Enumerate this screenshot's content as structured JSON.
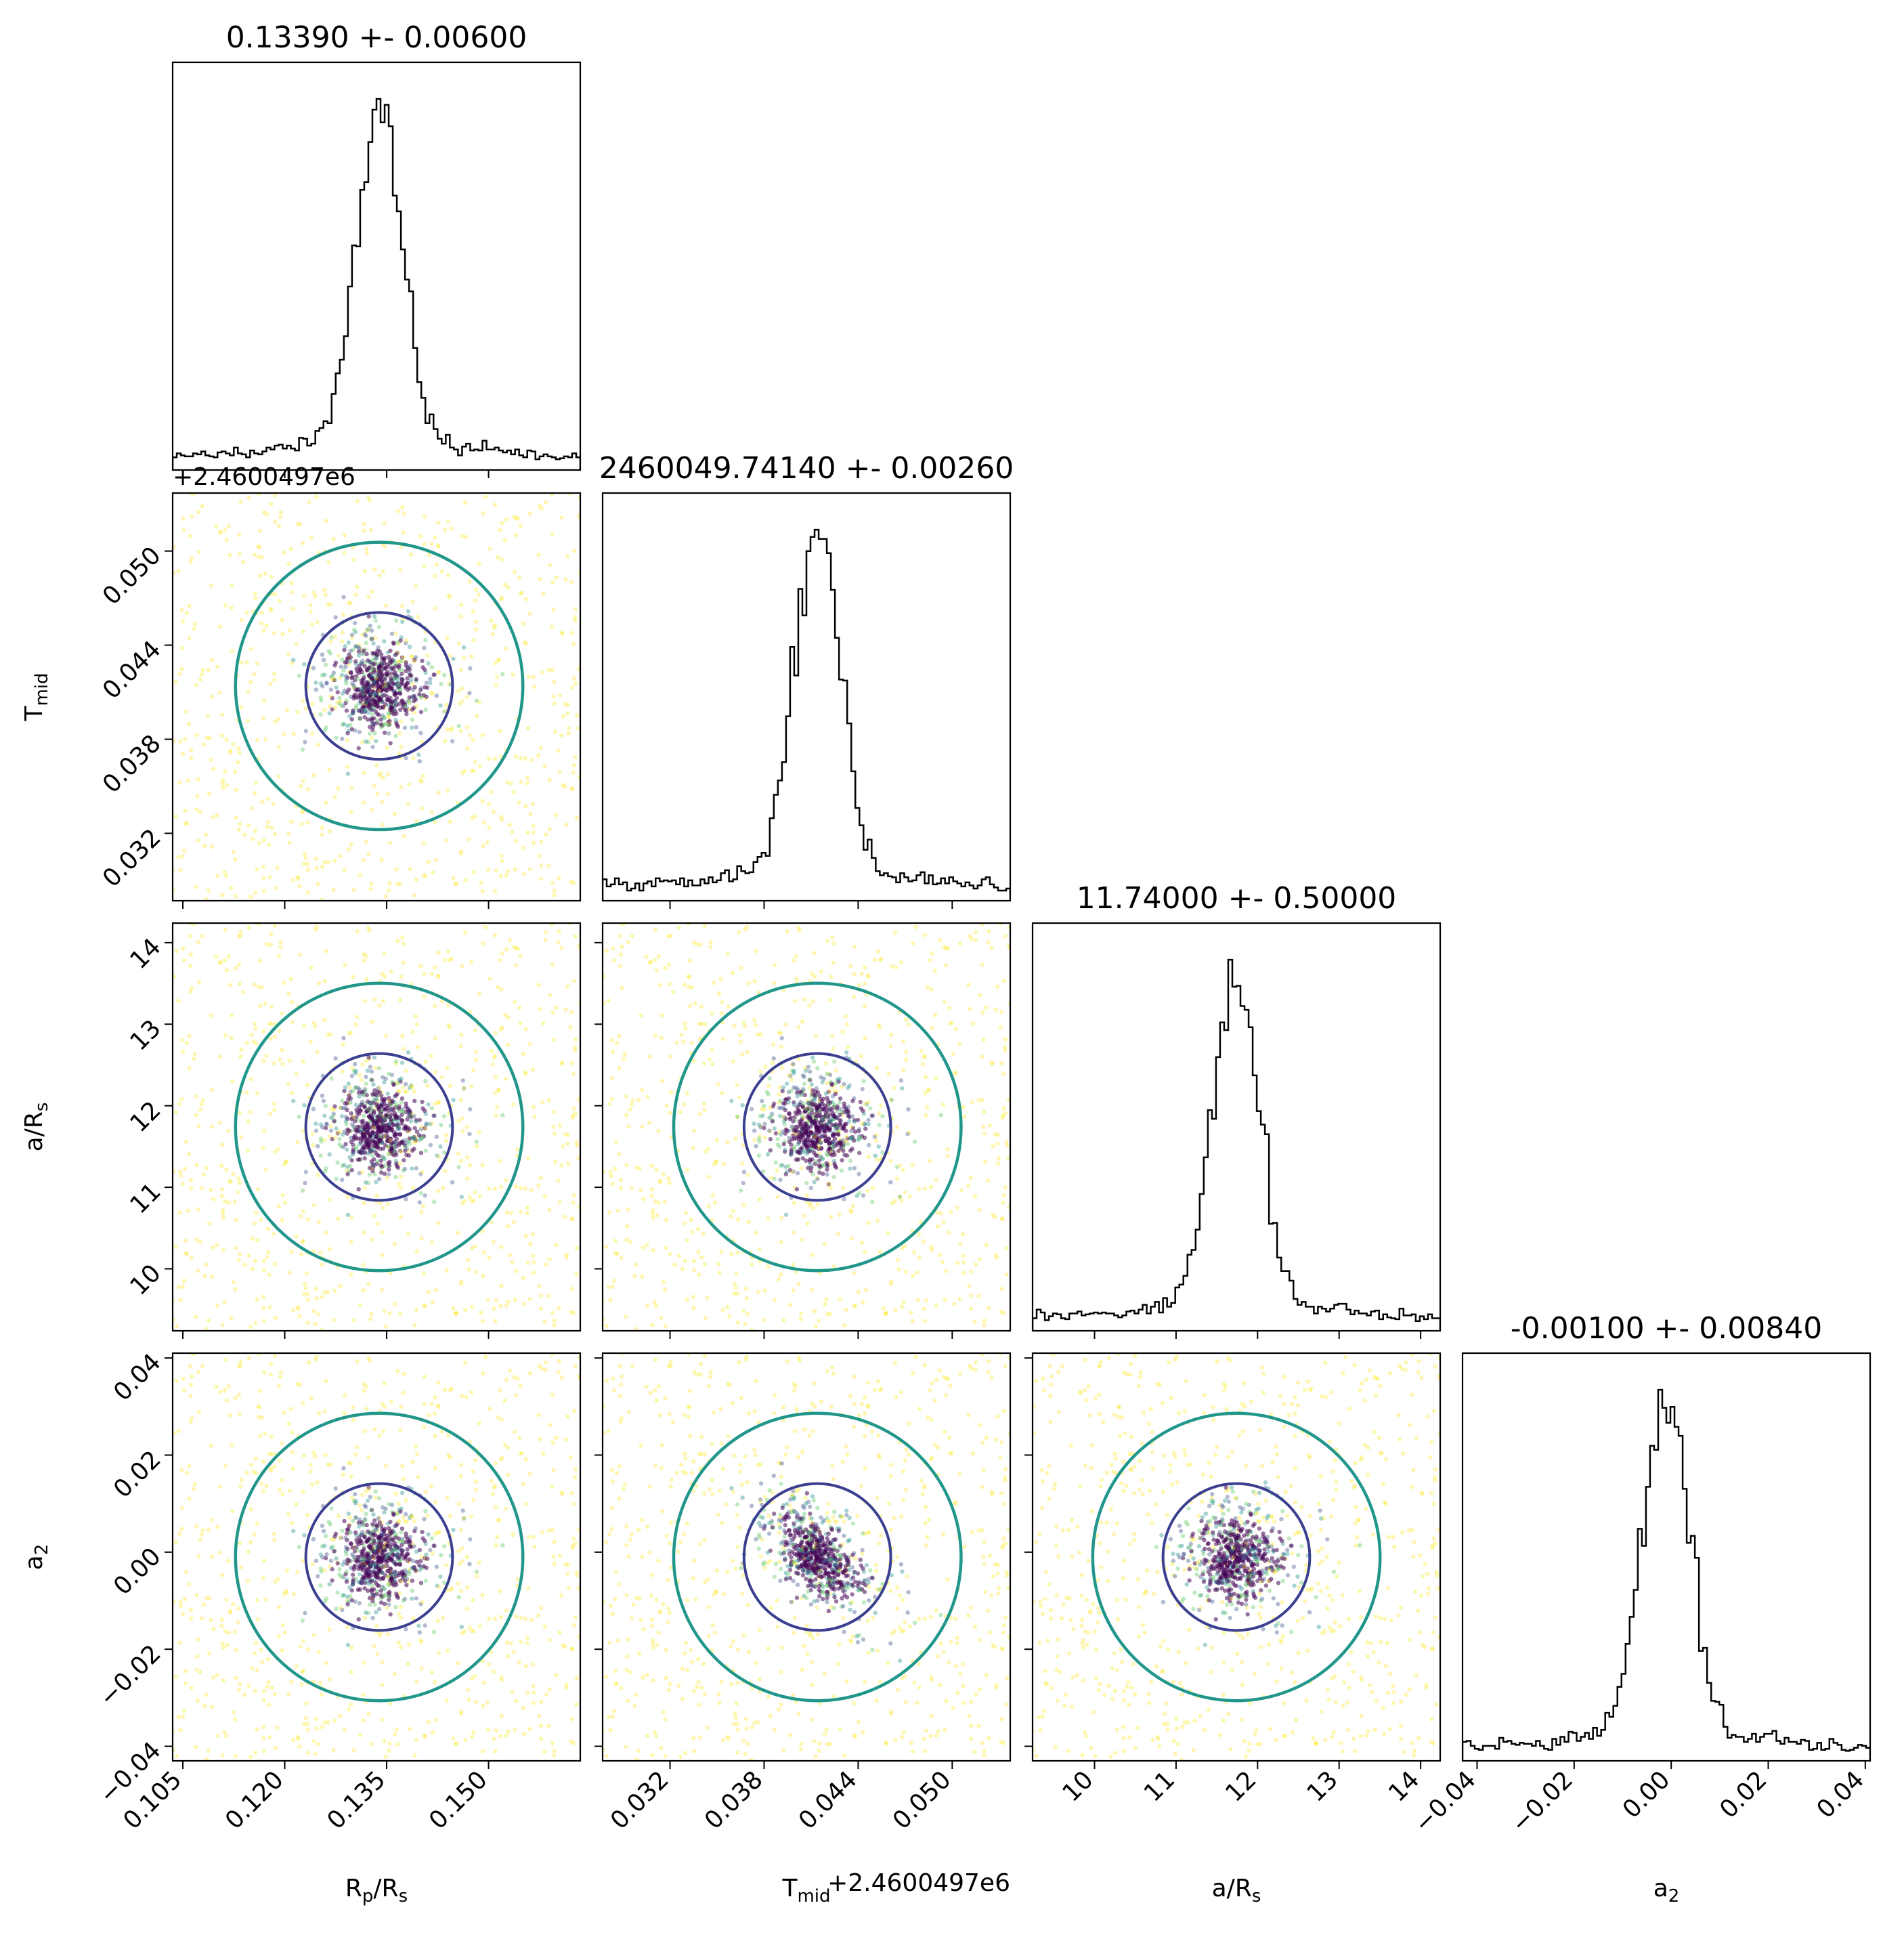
{
  "chart_data": {
    "type": "corner",
    "parameters": [
      {
        "label": "R",
        "label_sub": "p",
        "label_tail": "/R",
        "label_tail_sub": "s",
        "title": "0.13390 +- 0.00600",
        "range": [
          0.1035,
          0.1635
        ],
        "ticks": [
          0.105,
          0.12,
          0.135,
          0.15
        ],
        "tick_labels": [
          "0.105",
          "0.120",
          "0.135",
          "0.150"
        ],
        "mean": 0.1339,
        "sigma": 0.006
      },
      {
        "label": "T",
        "label_sub": "mid",
        "title": "2460049.74140 +- 0.00260",
        "offset_text": "+2.4600497e6",
        "range": [
          0.0277,
          0.0537
        ],
        "ticks": [
          0.032,
          0.038,
          0.044,
          0.05
        ],
        "tick_labels": [
          "0.032",
          "0.038",
          "0.044",
          "0.050"
        ],
        "mean": 0.0414,
        "sigma": 0.0026
      },
      {
        "label": "a/R",
        "label_sub": "s",
        "title": "11.74000 +- 0.50000",
        "range": [
          9.24,
          14.24
        ],
        "ticks": [
          10,
          11,
          12,
          13,
          14
        ],
        "tick_labels": [
          "10",
          "11",
          "12",
          "13",
          "14"
        ],
        "mean": 11.74,
        "sigma": 0.5
      },
      {
        "label": "a",
        "label_sub": "2",
        "title": "-0.00100 +- 0.00840",
        "range": [
          -0.043,
          0.041
        ],
        "ticks": [
          -0.04,
          -0.02,
          0.0,
          0.02,
          0.04
        ],
        "tick_labels": [
          "−0.04",
          "−0.02",
          "0.00",
          "0.02",
          "0.04"
        ],
        "mean": -0.001,
        "sigma": 0.0084
      }
    ],
    "offset_texts": {
      "row_1": "+2.4600497e6",
      "col_1": "+2.4600497e6"
    },
    "histogram_color": "#000000",
    "contour_levels_colors": [
      "#3b3f8f",
      "#21968b",
      "#fde725"
    ],
    "scatter_colormap": [
      "#440154",
      "#3b528b",
      "#21918c",
      "#5ec962",
      "#fde725"
    ]
  }
}
